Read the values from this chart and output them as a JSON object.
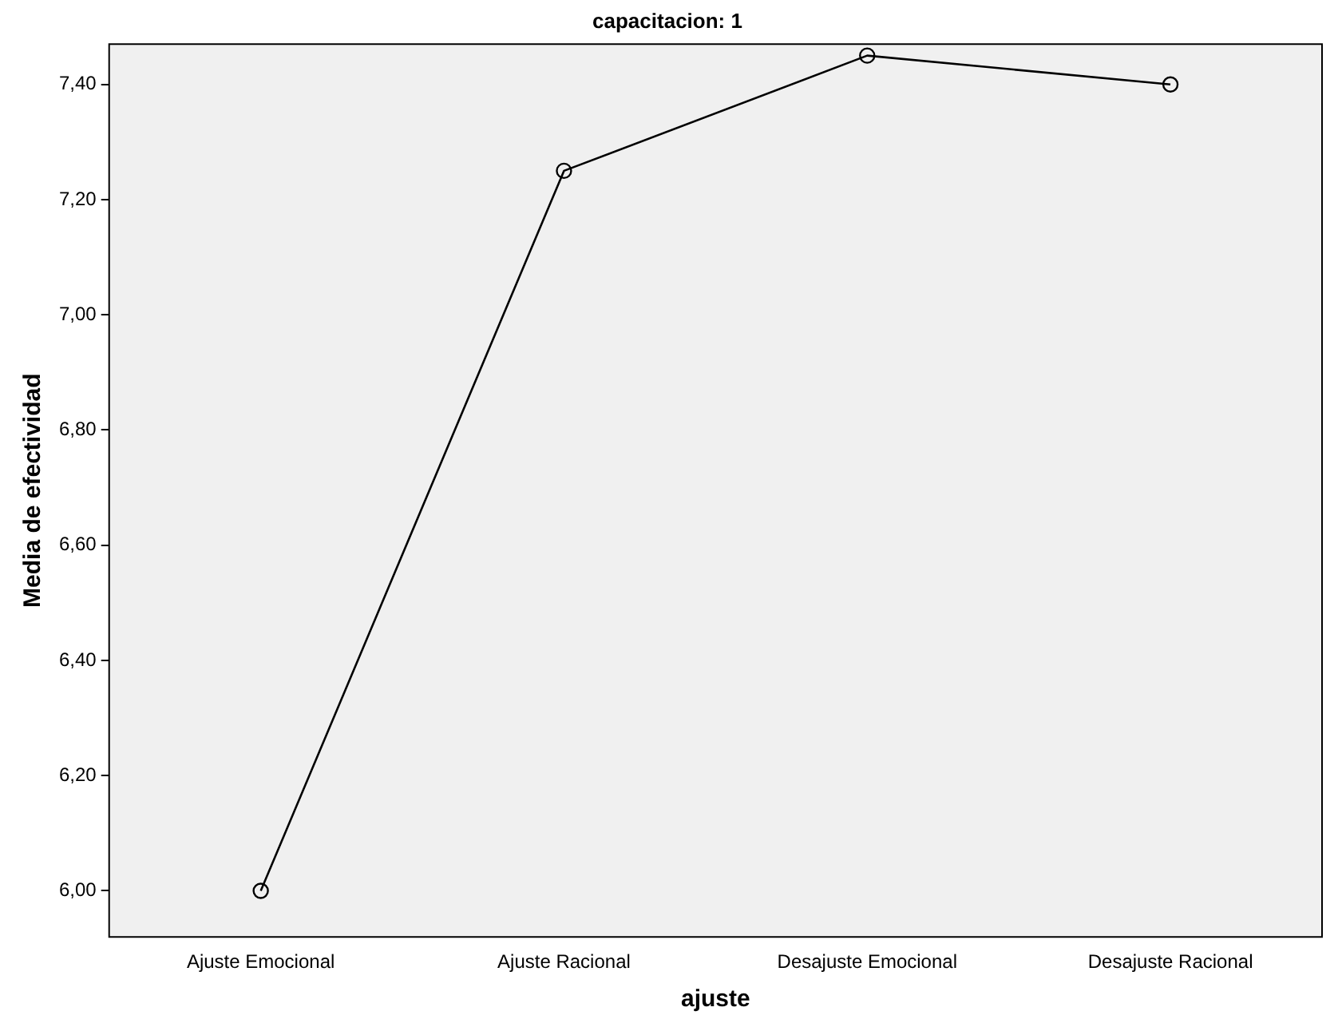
{
  "chart_data": {
    "type": "line",
    "title": "capacitacion: 1",
    "xlabel": "ajuste",
    "ylabel": "Media de efectividad",
    "categories": [
      "Ajuste Emocional",
      "Ajuste Racional",
      "Desajuste Emocional",
      "Desajuste Racional"
    ],
    "series": [
      {
        "color": "#000000",
        "values": [
          6.0,
          7.25,
          7.45,
          7.4
        ]
      }
    ],
    "ylim": [
      5.92,
      7.47
    ],
    "yticks": [
      {
        "value": 6,
        "label": "6,00"
      },
      {
        "value": 6.2,
        "label": "6,20"
      },
      {
        "value": 6.4,
        "label": "6,40"
      },
      {
        "value": 6.6,
        "label": "6,60"
      },
      {
        "value": 6.8,
        "label": "6,80"
      },
      {
        "value": 7,
        "label": "7,00"
      },
      {
        "value": 7.2,
        "label": "7,20"
      },
      {
        "value": 7.4,
        "label": "7,40"
      }
    ],
    "grid": false,
    "legend": false,
    "marker": "circle",
    "line_style": "solid"
  }
}
